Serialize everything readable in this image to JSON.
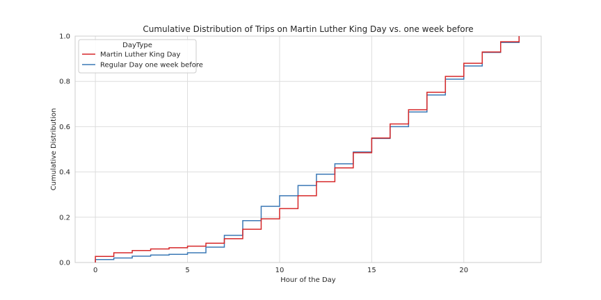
{
  "chart_data": {
    "type": "line",
    "step": "post",
    "title": "Cumulative Distribution of Trips on Martin Luther King Day vs. one week before",
    "xlabel": "Hour of the Day",
    "ylabel": "Cumulative Distribution",
    "xlim": [
      -1.1,
      24.2
    ],
    "ylim": [
      0,
      1.0
    ],
    "xticks": [
      0,
      5,
      10,
      15,
      20
    ],
    "yticks": [
      0.0,
      0.2,
      0.4,
      0.6,
      0.8,
      1.0
    ],
    "xtick_labels": [
      "0",
      "5",
      "10",
      "15",
      "20"
    ],
    "ytick_labels": [
      "0.0",
      "0.2",
      "0.4",
      "0.6",
      "0.8",
      "1.0"
    ],
    "grid": true,
    "legend": {
      "title": "DayType",
      "placement": "top-left"
    },
    "x": [
      0,
      1,
      2,
      3,
      4,
      5,
      6,
      7,
      8,
      9,
      10,
      11,
      12,
      13,
      14,
      15,
      16,
      17,
      18,
      19,
      20,
      21,
      22,
      23
    ],
    "series": [
      {
        "name": "Martin Luther King Day",
        "color": "#d62728",
        "values": [
          0.027,
          0.043,
          0.053,
          0.06,
          0.065,
          0.072,
          0.085,
          0.105,
          0.147,
          0.193,
          0.238,
          0.295,
          0.357,
          0.418,
          0.485,
          0.55,
          0.612,
          0.675,
          0.752,
          0.822,
          0.88,
          0.93,
          0.975,
          1.0
        ]
      },
      {
        "name": "Regular Day one week before",
        "color": "#3a78b5",
        "values": [
          0.013,
          0.02,
          0.028,
          0.033,
          0.036,
          0.043,
          0.068,
          0.12,
          0.185,
          0.248,
          0.295,
          0.34,
          0.39,
          0.436,
          0.488,
          0.548,
          0.6,
          0.665,
          0.74,
          0.81,
          0.868,
          0.928,
          0.972,
          1.0
        ]
      }
    ]
  }
}
